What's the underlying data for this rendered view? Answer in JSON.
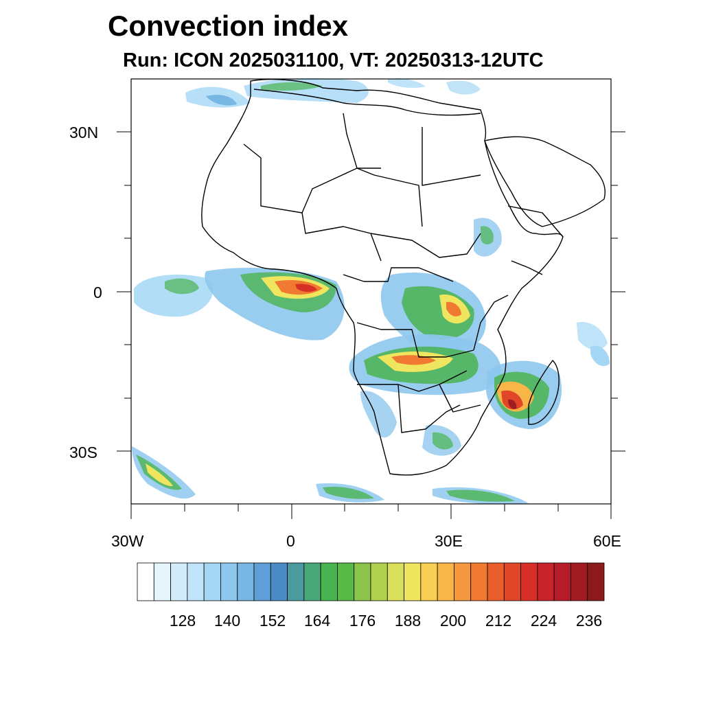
{
  "header": {
    "title": "Convection index",
    "subtitle": "Run: ICON 2025031100,  VT: 20250313-12UTC"
  },
  "axes": {
    "y_ticks": [
      "30N",
      "0",
      "30S"
    ],
    "x_ticks": [
      "30W",
      "0",
      "30E",
      "60E"
    ]
  },
  "colorbar": {
    "labels": [
      "128",
      "140",
      "152",
      "164",
      "176",
      "188",
      "200",
      "212",
      "224",
      "236"
    ],
    "colors": [
      "#ffffff",
      "#e6f5fd",
      "#d2ecfa",
      "#bfe3f8",
      "#a5d7f5",
      "#8ec8ee",
      "#78b6e4",
      "#5d9fd6",
      "#4b8cc6",
      "#4a9aa0",
      "#4aa779",
      "#4ab351",
      "#58b947",
      "#8cc44a",
      "#b2d050",
      "#d8df58",
      "#f0e55e",
      "#f8cf52",
      "#f8b548",
      "#f6993e",
      "#f17a33",
      "#ea5e2b",
      "#e04628",
      "#d83027",
      "#c8232a",
      "#b41d27",
      "#a01b22",
      "#8c1a1c"
    ]
  }
}
